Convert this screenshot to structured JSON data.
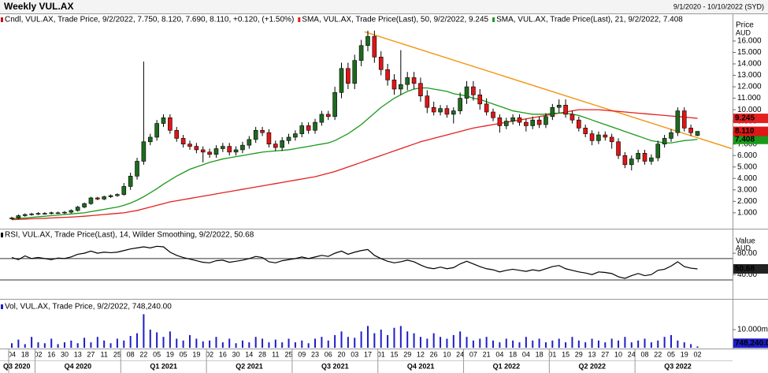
{
  "title": "Weekly VUL.AX",
  "date_range": "9/1/2020 - 10/10/2022 (SYD)",
  "x_axis": {
    "categories": [
      "04",
      null,
      "18",
      null,
      "02",
      null,
      "16",
      null,
      "30",
      null,
      "13",
      null,
      "27",
      null,
      "11",
      null,
      "25",
      null,
      "08",
      null,
      "22",
      null,
      "05",
      null,
      "19",
      null,
      "05",
      null,
      "19",
      null,
      "02",
      null,
      "16",
      null,
      "30",
      null,
      "14",
      null,
      "28",
      null,
      "11",
      null,
      "25",
      null,
      "09",
      null,
      "23",
      null,
      "06",
      null,
      "20",
      null,
      "03",
      null,
      "17",
      null,
      "01",
      null,
      "15",
      null,
      "29",
      null,
      "12",
      null,
      "26",
      null,
      "10",
      null,
      "24",
      null,
      "07",
      null,
      "21",
      null,
      "04",
      null,
      "18",
      null,
      "04",
      null,
      "18",
      null,
      "01",
      null,
      "15",
      null,
      "29",
      null,
      "13",
      null,
      "27",
      null,
      "10",
      null,
      "24",
      null,
      "08",
      null,
      "22",
      null,
      "05",
      null,
      "19",
      null,
      "02"
    ],
    "quarters": [
      "Q3 2020",
      "Q4 2020",
      "Q1 2021",
      "Q2 2021",
      "Q3 2021",
      "Q4 2021",
      "Q1 2022",
      "Q2 2022",
      "Q3 2022"
    ],
    "quarter_start": [
      0,
      4,
      17,
      30,
      43,
      56,
      69,
      82,
      95
    ]
  },
  "chart_data": [
    {
      "type": "candlestick",
      "y_axis_title": "Price",
      "y_axis_unit": "AUD",
      "legend": "Cndl, VUL.AX, Trade Price, 9/2/2022, 7.750, 8.120, 7.690, 8.110, +0.120, (+1.50%)",
      "legend_color": "#cc1111",
      "up_color": "#1e6b1e",
      "down_color": "#e01515",
      "last_label": "8.110",
      "open": [
        0.5,
        0.55,
        0.75,
        0.85,
        0.9,
        0.95,
        0.95,
        1.0,
        1.0,
        1.05,
        1.2,
        1.5,
        1.8,
        2.3,
        2.2,
        2.4,
        2.5,
        2.6,
        3.3,
        4.2,
        5.5,
        7.2,
        7.6,
        8.8,
        9.3,
        8.2,
        7.5,
        7.0,
        6.8,
        6.5,
        6.3,
        6.1,
        6.6,
        6.8,
        6.3,
        6.5,
        6.9,
        7.4,
        8.2,
        8.0,
        7.0,
        6.7,
        7.3,
        7.6,
        7.9,
        8.6,
        8.2,
        8.9,
        9.6,
        9.4,
        11.5,
        13.6,
        12.3,
        14.3,
        15.6,
        16.4,
        14.6,
        13.5,
        12.6,
        11.8,
        12.2,
        12.8,
        12.3,
        11.2,
        10.2,
        9.8,
        10.1,
        9.6,
        9.9,
        11.0,
        12.0,
        11.3,
        10.5,
        9.8,
        9.3,
        8.6,
        9.0,
        9.3,
        8.9,
        8.6,
        9.1,
        8.7,
        9.4,
        10.2,
        10.4,
        9.6,
        9.1,
        8.4,
        7.9,
        7.3,
        7.8,
        7.6,
        7.2,
        6.0,
        5.2,
        5.7,
        6.2,
        5.5,
        5.8,
        7.0,
        7.5,
        8.0,
        9.9,
        8.4,
        7.75
      ],
      "high": [
        0.65,
        0.85,
        0.95,
        1.0,
        1.05,
        1.05,
        1.1,
        1.1,
        1.15,
        1.3,
        1.6,
        1.9,
        2.4,
        2.4,
        2.5,
        2.6,
        2.7,
        3.6,
        4.5,
        5.8,
        14.2,
        7.9,
        9.1,
        9.6,
        9.6,
        8.5,
        7.8,
        7.3,
        7.1,
        6.8,
        6.6,
        6.9,
        7.1,
        7.1,
        6.8,
        7.2,
        7.7,
        8.5,
        8.5,
        8.3,
        7.3,
        7.6,
        7.9,
        8.2,
        8.9,
        8.9,
        9.2,
        9.9,
        9.9,
        12.0,
        14.1,
        14.1,
        14.8,
        16.1,
        16.9,
        16.9,
        15.1,
        14.0,
        13.1,
        15.2,
        13.3,
        13.3,
        12.8,
        11.7,
        10.7,
        10.4,
        10.4,
        10.2,
        11.5,
        12.5,
        12.5,
        11.8,
        11.0,
        10.1,
        9.6,
        9.3,
        9.6,
        9.6,
        9.2,
        9.4,
        9.4,
        9.7,
        10.5,
        10.9,
        10.9,
        9.9,
        9.4,
        8.7,
        8.2,
        8.1,
        8.1,
        7.9,
        7.5,
        6.3,
        6.0,
        6.5,
        6.5,
        6.1,
        7.3,
        7.8,
        8.3,
        10.2,
        10.2,
        8.7,
        8.12
      ],
      "low": [
        0.4,
        0.45,
        0.65,
        0.75,
        0.8,
        0.85,
        0.85,
        0.9,
        0.9,
        0.95,
        1.1,
        1.4,
        1.7,
        2.1,
        2.1,
        2.3,
        2.4,
        2.5,
        3.0,
        3.9,
        5.2,
        6.9,
        7.3,
        8.5,
        7.9,
        7.2,
        6.7,
        6.5,
        6.2,
        5.4,
        5.8,
        5.8,
        6.3,
        6.0,
        6.0,
        6.2,
        6.6,
        7.1,
        7.7,
        6.7,
        6.4,
        6.4,
        7.0,
        7.3,
        7.6,
        7.9,
        7.9,
        8.6,
        9.1,
        9.1,
        11.0,
        11.8,
        11.8,
        13.8,
        15.1,
        14.1,
        13.0,
        12.1,
        11.3,
        11.3,
        11.7,
        11.8,
        10.7,
        9.7,
        9.5,
        9.5,
        9.3,
        8.8,
        9.6,
        10.5,
        10.8,
        10.0,
        9.5,
        9.0,
        8.0,
        8.3,
        8.7,
        8.6,
        8.1,
        8.3,
        8.4,
        8.4,
        9.1,
        9.7,
        9.3,
        8.8,
        8.1,
        7.6,
        6.9,
        7.0,
        7.3,
        6.6,
        5.7,
        4.9,
        4.7,
        5.4,
        5.2,
        5.2,
        5.5,
        6.7,
        7.2,
        7.7,
        8.1,
        7.7,
        7.69
      ],
      "close": [
        0.55,
        0.75,
        0.85,
        0.9,
        0.95,
        0.95,
        1.0,
        1.0,
        1.05,
        1.2,
        1.5,
        1.8,
        2.3,
        2.2,
        2.4,
        2.5,
        2.6,
        3.3,
        4.2,
        5.5,
        7.2,
        7.6,
        8.8,
        9.3,
        8.2,
        7.5,
        7.0,
        6.8,
        6.5,
        6.3,
        6.1,
        6.6,
        6.8,
        6.3,
        6.5,
        6.9,
        7.4,
        8.2,
        8.0,
        7.0,
        6.7,
        7.3,
        7.6,
        7.9,
        8.6,
        8.2,
        8.9,
        9.6,
        9.4,
        11.5,
        13.6,
        12.3,
        14.3,
        15.6,
        16.4,
        14.6,
        13.5,
        12.6,
        11.8,
        12.2,
        12.8,
        12.3,
        11.2,
        10.2,
        9.8,
        10.1,
        9.6,
        9.9,
        11.0,
        12.0,
        11.3,
        10.5,
        9.8,
        9.3,
        8.6,
        9.0,
        9.3,
        8.9,
        8.6,
        9.1,
        8.7,
        9.4,
        10.2,
        10.4,
        9.6,
        9.1,
        8.4,
        7.9,
        7.3,
        7.8,
        7.6,
        7.2,
        6.0,
        5.2,
        5.7,
        6.2,
        5.5,
        5.8,
        7.0,
        7.5,
        8.0,
        9.9,
        8.4,
        7.99,
        8.11
      ],
      "series": [
        {
          "name": "SMA, VUL.AX, Trade Price(Last),  50, 9/2/2022, 9.245",
          "color": "#e32020",
          "last_label": "9.245",
          "values": [
            0.4,
            0.42,
            0.45,
            0.48,
            0.5,
            0.52,
            0.55,
            0.58,
            0.6,
            0.63,
            0.66,
            0.7,
            0.75,
            0.8,
            0.85,
            0.9,
            0.95,
            1.0,
            1.1,
            1.2,
            1.35,
            1.5,
            1.65,
            1.8,
            1.95,
            2.05,
            2.15,
            2.25,
            2.35,
            2.45,
            2.55,
            2.65,
            2.75,
            2.85,
            2.95,
            3.05,
            3.15,
            3.25,
            3.35,
            3.45,
            3.55,
            3.65,
            3.75,
            3.85,
            3.95,
            4.05,
            4.15,
            4.3,
            4.45,
            4.6,
            4.8,
            5.0,
            5.2,
            5.4,
            5.6,
            5.8,
            6.0,
            6.2,
            6.4,
            6.6,
            6.8,
            7.0,
            7.2,
            7.35,
            7.5,
            7.65,
            7.8,
            7.95,
            8.1,
            8.25,
            8.4,
            8.5,
            8.6,
            8.7,
            8.8,
            8.9,
            9.0,
            9.1,
            9.2,
            9.3,
            9.4,
            9.5,
            9.6,
            9.7,
            9.8,
            9.9,
            10.0,
            10.0,
            10.0,
            10.0,
            9.95,
            9.9,
            9.85,
            9.8,
            9.75,
            9.7,
            9.65,
            9.6,
            9.55,
            9.5,
            9.45,
            9.4,
            9.35,
            9.3,
            9.245
          ]
        },
        {
          "name": "SMA, VUL.AX, Trade Price(Last),  21, 9/2/2022, 7.408",
          "color": "#1a9a1a",
          "last_label": "7.408",
          "values": [
            0.5,
            0.52,
            0.55,
            0.6,
            0.65,
            0.7,
            0.75,
            0.8,
            0.85,
            0.9,
            0.95,
            1.0,
            1.1,
            1.2,
            1.3,
            1.4,
            1.5,
            1.65,
            1.85,
            2.1,
            2.4,
            2.75,
            3.1,
            3.5,
            3.85,
            4.2,
            4.5,
            4.8,
            5.0,
            5.2,
            5.4,
            5.55,
            5.7,
            5.8,
            5.9,
            6.0,
            6.1,
            6.2,
            6.3,
            6.35,
            6.4,
            6.45,
            6.5,
            6.6,
            6.7,
            6.8,
            6.9,
            7.0,
            7.1,
            7.3,
            7.6,
            7.9,
            8.3,
            8.7,
            9.2,
            9.7,
            10.2,
            10.6,
            11.0,
            11.3,
            11.6,
            11.8,
            11.9,
            11.9,
            11.8,
            11.7,
            11.6,
            11.4,
            11.3,
            11.2,
            11.0,
            10.9,
            10.7,
            10.5,
            10.3,
            10.1,
            9.9,
            9.8,
            9.7,
            9.6,
            9.6,
            9.6,
            9.7,
            9.7,
            9.7,
            9.6,
            9.5,
            9.3,
            9.1,
            8.9,
            8.7,
            8.5,
            8.3,
            8.1,
            7.9,
            7.7,
            7.5,
            7.3,
            7.2,
            7.1,
            7.1,
            7.2,
            7.3,
            7.35,
            7.408
          ]
        }
      ],
      "trendline": {
        "color": "#f29a1f",
        "x": [
          53.5,
          109.2
        ],
        "y": [
          16.8,
          6.6
        ]
      },
      "ylim": [
        -0.25,
        18.2
      ],
      "yticks": [
        {
          "value": 1,
          "label": "1.000"
        },
        {
          "value": 2,
          "label": "2.000"
        },
        {
          "value": 3,
          "label": "3.000"
        },
        {
          "value": 4,
          "label": "4.000"
        },
        {
          "value": 5,
          "label": "5.000"
        },
        {
          "value": 6,
          "label": "6.000"
        },
        {
          "value": 7,
          "label": "7.000"
        },
        {
          "value": 8,
          "label": "8.000"
        },
        {
          "value": 9,
          "label": "9.000"
        },
        {
          "value": 10,
          "label": "10.000"
        },
        {
          "value": 11,
          "label": "11.000"
        },
        {
          "value": 12,
          "label": "12.000"
        },
        {
          "value": 13,
          "label": "13.000"
        },
        {
          "value": 14,
          "label": "14.000"
        },
        {
          "value": 15,
          "label": "15.000"
        },
        {
          "value": 16,
          "label": "16.000"
        }
      ]
    },
    {
      "type": "line",
      "y_axis_title": "Value",
      "y_axis_unit": "AUD",
      "series": [
        {
          "name": "RSI, VUL.AX, Trade Price(Last), 14, Wilder Smoothing, 9/2/2022, 50.68",
          "color": "#000000",
          "last_label": "50.68",
          "values": [
            72,
            68,
            75,
            70,
            72,
            70,
            68,
            71,
            70,
            73,
            78,
            80,
            84,
            80,
            82,
            81,
            82,
            85,
            88,
            90,
            92,
            90,
            93,
            92,
            82,
            76,
            72,
            69,
            66,
            63,
            62,
            66,
            67,
            63,
            65,
            67,
            70,
            74,
            72,
            64,
            62,
            66,
            68,
            70,
            73,
            70,
            73,
            76,
            74,
            80,
            84,
            78,
            82,
            85,
            87,
            76,
            70,
            65,
            62,
            64,
            67,
            64,
            58,
            53,
            51,
            54,
            51,
            53,
            60,
            65,
            60,
            55,
            51,
            49,
            45,
            48,
            50,
            48,
            46,
            49,
            47,
            51,
            55,
            57,
            51,
            48,
            45,
            43,
            40,
            45,
            44,
            42,
            36,
            33,
            38,
            42,
            38,
            40,
            48,
            50,
            56,
            64,
            55,
            52,
            50.68
          ]
        }
      ],
      "levels": [
        70,
        30
      ],
      "ylim": [
        -4,
        123
      ],
      "yticks": [
        {
          "value": 40,
          "label": "40.00"
        },
        {
          "value": 80,
          "label": "80.00"
        }
      ]
    },
    {
      "type": "bar",
      "color": "#1d1dc8",
      "legend": "Vol, VUL.AX, Trade Price, 9/2/2022, 748,240.00",
      "last_label": "748,240.00",
      "values": [
        2500000,
        4500000,
        2000000,
        6000000,
        3000000,
        2500000,
        5000000,
        2000000,
        3000000,
        4000000,
        2500000,
        5500000,
        3000000,
        6000000,
        4000000,
        2500000,
        5000000,
        4000000,
        6500000,
        8000000,
        18500000,
        10000000,
        8500000,
        6000000,
        9000000,
        5000000,
        4000000,
        7000000,
        5000000,
        3500000,
        4000000,
        6000000,
        3000000,
        5000000,
        2500000,
        4000000,
        3000000,
        6000000,
        5000000,
        3000000,
        4500000,
        3000000,
        5000000,
        3000000,
        4000000,
        2500000,
        5000000,
        6000000,
        4000000,
        7000000,
        9000000,
        6000000,
        5500000,
        9000000,
        12000000,
        8000000,
        10000000,
        7000000,
        11000000,
        12000000,
        9000000,
        8000000,
        6000000,
        5000000,
        8000000,
        6000000,
        5000000,
        7000000,
        9000000,
        6000000,
        4000000,
        5000000,
        6000000,
        4000000,
        3000000,
        5000000,
        4000000,
        3000000,
        6000000,
        4000000,
        5000000,
        3000000,
        4000000,
        5000000,
        3000000,
        6000000,
        4000000,
        3000000,
        5000000,
        4000000,
        3000000,
        5000000,
        4000000,
        6000000,
        3000000,
        4000000,
        5000000,
        3000000,
        4000000,
        6000000,
        7000000,
        4000000,
        3000000,
        2000000,
        748240
      ],
      "ylim": [
        0,
        20000000
      ],
      "yticks": [
        {
          "value": 10000000,
          "label": "10.000m"
        }
      ]
    }
  ]
}
